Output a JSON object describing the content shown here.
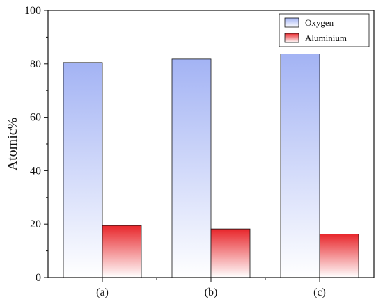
{
  "chart_data": {
    "type": "bar",
    "categories": [
      "(a)",
      "(b)",
      "(c)"
    ],
    "series": [
      {
        "name": "Oxygen",
        "values": [
          80.5,
          81.8,
          83.7
        ],
        "color_top": "#a3b3f4",
        "color_bottom": "#ffffff"
      },
      {
        "name": "Aluminium",
        "values": [
          19.5,
          18.2,
          16.3
        ],
        "color_top": "#e8262b",
        "color_bottom": "#ffffff"
      }
    ],
    "title": "",
    "xlabel": "",
    "ylabel": "Atomic%",
    "ylim": [
      0,
      100
    ],
    "yticks": [
      0,
      20,
      40,
      60,
      80,
      100
    ],
    "grid": false,
    "legend_position": "top-right"
  }
}
